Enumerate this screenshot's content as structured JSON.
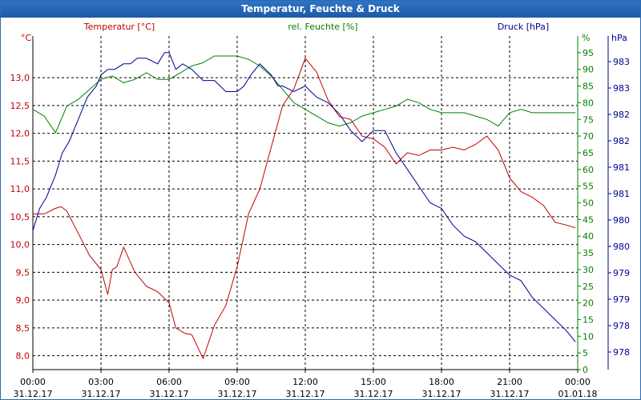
{
  "window": {
    "title": "Temperatur, Feuchte & Druck"
  },
  "colors": {
    "temp": "#c00000",
    "hum": "#008000",
    "press": "#000090",
    "axis": "#000000",
    "grid": "#000000"
  },
  "chart_data": {
    "type": "line",
    "title": "Temperatur, Feuchte & Druck",
    "x_ticks": [
      {
        "time": "00:00",
        "date": "31.12.17"
      },
      {
        "time": "03:00",
        "date": "31.12.17"
      },
      {
        "time": "06:00",
        "date": "31.12.17"
      },
      {
        "time": "09:00",
        "date": "31.12.17"
      },
      {
        "time": "12:00",
        "date": "31.12.17"
      },
      {
        "time": "15:00",
        "date": "31.12.17"
      },
      {
        "time": "18:00",
        "date": "31.12.17"
      },
      {
        "time": "21:00",
        "date": "31.12.17"
      },
      {
        "time": "00:00",
        "date": "01.01.18"
      }
    ],
    "xlim": [
      0,
      24
    ],
    "axes": {
      "temp": {
        "legend": "Temperatur [°C]",
        "unit": "°C",
        "ylim": [
          7.75,
          13.75
        ],
        "ticks": [
          8.0,
          8.5,
          9.0,
          9.5,
          10.0,
          10.5,
          11.0,
          11.5,
          12.0,
          12.5,
          13.0
        ],
        "tick_labels": [
          "8,0",
          "8,5",
          "9,0",
          "9,5",
          "10,0",
          "10,5",
          "11,0",
          "11,5",
          "12,0",
          "12,5",
          "13,0"
        ]
      },
      "hum": {
        "legend": "rel. Feuchte [%]",
        "unit": "%",
        "ylim": [
          0,
          100
        ],
        "ticks": [
          0,
          5,
          10,
          15,
          20,
          25,
          30,
          35,
          40,
          45,
          50,
          55,
          60,
          65,
          70,
          75,
          80,
          85,
          90,
          95
        ],
        "tick_labels": [
          "0",
          "5",
          "10",
          "15",
          "20",
          "25",
          "30",
          "35",
          "40",
          "45",
          "50",
          "55",
          "60",
          "65",
          "70",
          "75",
          "80",
          "85",
          "90",
          "95"
        ]
      },
      "press": {
        "legend": "Druck [hPa]",
        "unit": "hPa",
        "ylim": [
          977.5,
          983.5
        ],
        "tick_labels": [
          "978",
          "978",
          "979",
          "979",
          "980",
          "980",
          "981",
          "981",
          "982",
          "982",
          "983",
          "983"
        ]
      }
    },
    "series": [
      {
        "name": "Temperatur",
        "axis": "temp",
        "x": [
          0,
          0.5,
          1,
          1.25,
          1.5,
          2,
          2.5,
          3,
          3.3,
          3.5,
          3.7,
          4,
          4.5,
          5,
          5.5,
          6,
          6.3,
          6.7,
          7,
          7.5,
          8,
          8.5,
          9,
          9.5,
          10,
          10.5,
          11,
          11.5,
          12,
          12.5,
          13,
          13.5,
          14,
          14.5,
          15,
          15.5,
          16,
          16.5,
          17,
          17.5,
          18,
          18.5,
          19,
          19.5,
          20,
          20.5,
          21,
          21.5,
          22,
          22.5,
          23,
          23.5,
          23.9
        ],
        "y": [
          10.55,
          10.55,
          10.65,
          10.68,
          10.6,
          10.2,
          9.8,
          9.55,
          9.1,
          9.55,
          9.6,
          9.95,
          9.5,
          9.25,
          9.15,
          8.95,
          8.5,
          8.4,
          8.38,
          7.95,
          8.55,
          8.9,
          9.6,
          10.55,
          11.0,
          11.75,
          12.5,
          12.8,
          13.35,
          13.1,
          12.6,
          12.3,
          12.25,
          11.95,
          11.9,
          11.75,
          11.45,
          11.65,
          11.6,
          11.7,
          11.7,
          11.75,
          11.7,
          11.8,
          11.95,
          11.7,
          11.2,
          10.95,
          10.85,
          10.7,
          10.4,
          10.35,
          10.3
        ]
      },
      {
        "name": "rel. Feuchte",
        "axis": "hum",
        "x": [
          0,
          0.5,
          1,
          1.5,
          2,
          2.5,
          3,
          3.5,
          4,
          4.5,
          5,
          5.5,
          6,
          6.5,
          7,
          7.5,
          8,
          8.5,
          9,
          9.5,
          10,
          10.5,
          11,
          11.5,
          12,
          12.5,
          13,
          13.5,
          14,
          14.5,
          15,
          15.5,
          16,
          16.5,
          17,
          17.5,
          18,
          18.5,
          19,
          19.5,
          20,
          20.5,
          21,
          21.5,
          22,
          22.5,
          23,
          23.5,
          23.9
        ],
        "y": [
          78,
          76,
          71,
          79,
          81,
          84,
          87,
          88,
          86,
          87,
          89,
          87,
          87,
          89,
          91,
          92,
          94,
          94,
          94,
          93,
          91,
          88,
          84,
          80,
          78,
          76,
          74,
          73,
          74,
          76,
          77,
          78,
          79,
          81,
          80,
          78,
          77,
          77,
          77,
          76,
          75,
          73,
          77,
          78,
          77,
          77,
          77,
          77,
          77
        ]
      },
      {
        "name": "Druck",
        "axis": "press",
        "x": [
          0,
          0.3,
          0.6,
          1,
          1.3,
          1.6,
          2,
          2.4,
          2.8,
          3,
          3.3,
          3.6,
          4,
          4.3,
          4.6,
          5,
          5.5,
          5.8,
          6,
          6.3,
          6.6,
          7,
          7.5,
          8,
          8.5,
          9,
          9.3,
          9.6,
          10,
          10.5,
          10.8,
          11,
          11.5,
          12,
          12.5,
          13,
          13.5,
          14,
          14.5,
          15,
          15.5,
          16,
          16.5,
          17,
          17.5,
          18,
          18.5,
          19,
          19.5,
          20,
          20.5,
          21,
          21.5,
          22,
          22.5,
          23,
          23.5,
          23.9
        ],
        "y": [
          980.0,
          980.4,
          980.6,
          981.0,
          981.4,
          981.6,
          982.0,
          982.4,
          982.6,
          982.8,
          982.9,
          982.9,
          983.0,
          983.0,
          983.1,
          983.1,
          983.0,
          983.2,
          983.2,
          982.9,
          983.0,
          982.9,
          982.7,
          982.7,
          982.5,
          982.5,
          982.6,
          982.8,
          983.0,
          982.8,
          982.6,
          982.6,
          982.5,
          982.6,
          982.4,
          982.3,
          982.1,
          981.8,
          981.6,
          981.8,
          981.8,
          981.4,
          981.1,
          980.8,
          980.5,
          980.4,
          980.1,
          979.9,
          979.8,
          979.6,
          979.4,
          979.2,
          979.1,
          978.8,
          978.6,
          978.4,
          978.2,
          978.0
        ]
      }
    ]
  }
}
